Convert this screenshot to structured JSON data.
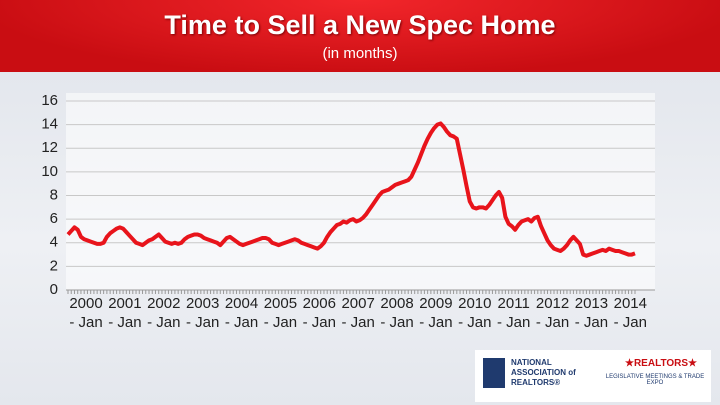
{
  "chart_data": {
    "type": "line",
    "title": "Time to Sell a New Spec Home",
    "subtitle": "(in months)",
    "categories": [
      "2000 - Jan",
      null,
      null,
      null,
      null,
      null,
      null,
      null,
      null,
      null,
      null,
      null,
      "2001 - Jan",
      null,
      null,
      null,
      null,
      null,
      null,
      null,
      null,
      null,
      null,
      null,
      "2002 - Jan",
      null,
      null,
      null,
      null,
      null,
      null,
      null,
      null,
      null,
      null,
      null,
      "2003 - Jan",
      null,
      null,
      null,
      null,
      null,
      null,
      null,
      null,
      null,
      null,
      null,
      "2004 - Jan",
      null,
      null,
      null,
      null,
      null,
      null,
      null,
      null,
      null,
      null,
      null,
      "2005 - Jan",
      null,
      null,
      null,
      null,
      null,
      null,
      null,
      null,
      null,
      null,
      null,
      "2006 - Jan",
      null,
      null,
      null,
      null,
      null,
      null,
      null,
      null,
      null,
      null,
      null,
      "2007 - Jan",
      null,
      null,
      null,
      null,
      null,
      null,
      null,
      null,
      null,
      null,
      null,
      "2008 - Jan",
      null,
      null,
      null,
      null,
      null,
      null,
      null,
      null,
      null,
      null,
      null,
      "2009 - Jan",
      null,
      null,
      null,
      null,
      null,
      null,
      null,
      null,
      null,
      null,
      null,
      "2010 - Jan",
      null,
      null,
      null,
      null,
      null,
      null,
      null,
      null,
      null,
      null,
      null,
      "2011 - Jan",
      null,
      null,
      null,
      null,
      null,
      null,
      null,
      null,
      null,
      null,
      null,
      "2012 - Jan",
      null,
      null,
      null,
      null,
      null,
      null,
      null,
      null,
      null,
      null,
      null,
      "2013 - Jan",
      null,
      null,
      null,
      null,
      null,
      null,
      null,
      null,
      null,
      null,
      null,
      "2014 - Jan",
      null,
      null,
      null,
      null,
      null,
      null,
      null
    ],
    "values": [
      4.7,
      5.0,
      5.3,
      5.1,
      4.5,
      4.3,
      4.2,
      4.1,
      4.0,
      3.9,
      3.9,
      4.0,
      4.5,
      4.8,
      5.0,
      5.2,
      5.3,
      5.2,
      4.9,
      4.6,
      4.3,
      4.0,
      3.9,
      3.8,
      4.0,
      4.2,
      4.3,
      4.5,
      4.7,
      4.4,
      4.1,
      4.0,
      3.9,
      4.0,
      3.9,
      4.0,
      4.3,
      4.5,
      4.6,
      4.7,
      4.7,
      4.6,
      4.4,
      4.3,
      4.2,
      4.1,
      4.0,
      3.8,
      4.1,
      4.4,
      4.5,
      4.3,
      4.1,
      3.9,
      3.8,
      3.9,
      4.0,
      4.1,
      4.2,
      4.3,
      4.4,
      4.4,
      4.3,
      4.0,
      3.9,
      3.8,
      3.9,
      4.0,
      4.1,
      4.2,
      4.3,
      4.2,
      4.0,
      3.9,
      3.8,
      3.7,
      3.6,
      3.5,
      3.7,
      4.0,
      4.5,
      4.9,
      5.2,
      5.5,
      5.6,
      5.8,
      5.7,
      5.9,
      6.0,
      5.8,
      5.9,
      6.1,
      6.4,
      6.8,
      7.2,
      7.6,
      8.0,
      8.3,
      8.4,
      8.5,
      8.7,
      8.9,
      9.0,
      9.1,
      9.2,
      9.3,
      9.6,
      10.2,
      10.8,
      11.5,
      12.2,
      12.8,
      13.3,
      13.7,
      14.0,
      14.1,
      13.8,
      13.4,
      13.1,
      13.0,
      12.8,
      11.5,
      10.2,
      8.8,
      7.5,
      7.0,
      6.9,
      7.0,
      7.0,
      6.9,
      7.2,
      7.6,
      8.0,
      8.3,
      7.8,
      6.2,
      5.6,
      5.4,
      5.1,
      5.5,
      5.8,
      5.9,
      6.0,
      5.8,
      6.1,
      6.2,
      5.4,
      4.8,
      4.2,
      3.8,
      3.5,
      3.4,
      3.3,
      3.5,
      3.8,
      4.2,
      4.5,
      4.2,
      3.9,
      3.0,
      2.9,
      3.0,
      3.1,
      3.2,
      3.3,
      3.4,
      3.3,
      3.5,
      3.4,
      3.3,
      3.3,
      3.2,
      3.1,
      3.0,
      3.0,
      3.1
    ],
    "color": "#e8141b",
    "ylim": [
      0,
      16
    ],
    "yticks": [
      0,
      2,
      4,
      6,
      8,
      10,
      12,
      14,
      16
    ],
    "grid": true
  },
  "logos": [
    "NATIONAL ASSOCIATION of REALTORS®",
    "★REALTORS★",
    "LEGISLATIVE MEETINGS & TRADE EXPO"
  ]
}
